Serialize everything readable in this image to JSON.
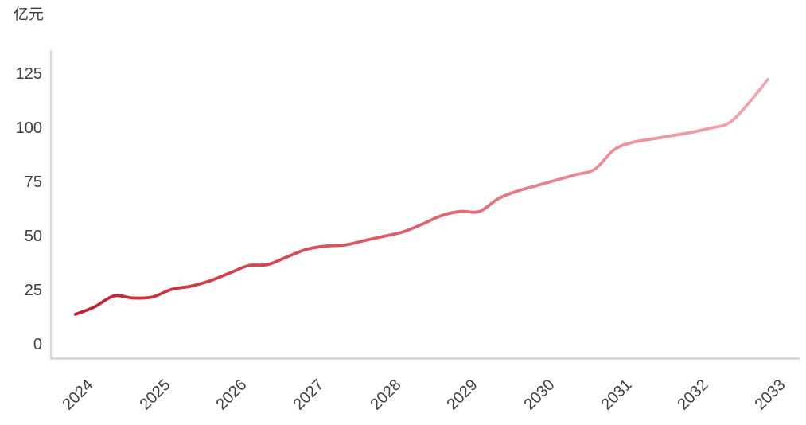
{
  "chart_data": {
    "type": "line",
    "title": "",
    "unit_label": "亿元",
    "x": [
      2024,
      2024.25,
      2024.5,
      2024.75,
      2025,
      2025.25,
      2025.5,
      2025.75,
      2026,
      2026.25,
      2026.5,
      2026.75,
      2027,
      2027.25,
      2027.5,
      2027.75,
      2028,
      2028.25,
      2028.5,
      2028.75,
      2029,
      2029.25,
      2029.5,
      2029.75,
      2030,
      2030.25,
      2030.5,
      2030.75,
      2031,
      2031.25,
      2031.5,
      2031.75,
      2032,
      2032.25,
      2032.5,
      2032.75,
      2033
    ],
    "values": [
      14,
      17.5,
      22.5,
      21.5,
      22,
      25.5,
      27,
      29.5,
      33,
      36.5,
      37,
      40.5,
      44,
      45.5,
      46,
      48,
      50,
      52,
      55.5,
      59.5,
      61.5,
      61.5,
      67.5,
      71,
      73.5,
      76,
      78.5,
      81,
      90,
      93.5,
      95,
      96.5,
      98,
      100,
      102.5,
      111.5,
      122.5
    ],
    "x_tick_labels": [
      "2024",
      "2025",
      "2026",
      "2027",
      "2028",
      "2029",
      "2030",
      "2031",
      "2032",
      "2033"
    ],
    "y_ticks": [
      0,
      25,
      50,
      75,
      100,
      125
    ],
    "ylim": [
      0,
      130
    ],
    "xlabel": "",
    "ylabel": "亿元",
    "grid": false,
    "legend": null,
    "line_gradient": [
      "#C2202F",
      "#D3444F",
      "#E0626D",
      "#EC8B96",
      "#F2A6B0"
    ],
    "axis_color": "#DADADA",
    "text_color": "#3f3f3f"
  }
}
